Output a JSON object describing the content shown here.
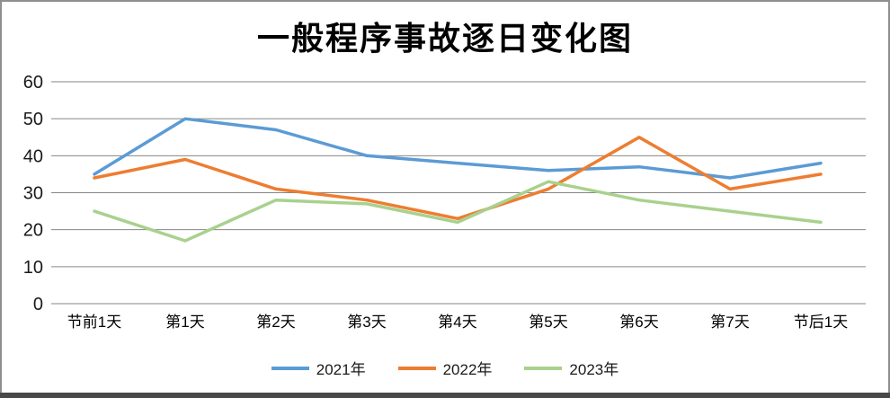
{
  "chart_data": {
    "type": "line",
    "title": "一般程序事故逐日变化图",
    "categories": [
      "节前1天",
      "第1天",
      "第2天",
      "第3天",
      "第4天",
      "第5天",
      "第6天",
      "第7天",
      "节后1天"
    ],
    "series": [
      {
        "name": "2021年",
        "color": "#5B9BD5",
        "values": [
          35,
          50,
          47,
          40,
          38,
          36,
          37,
          34,
          38
        ]
      },
      {
        "name": "2022年",
        "color": "#ED7D31",
        "values": [
          34,
          39,
          31,
          28,
          23,
          31,
          45,
          31,
          35
        ]
      },
      {
        "name": "2023年",
        "color": "#A9D18E",
        "values": [
          25,
          17,
          28,
          27,
          22,
          33,
          28,
          25,
          22
        ]
      }
    ],
    "y_axis": {
      "min": 0,
      "max": 60,
      "step": 10,
      "tick_labels": [
        "0",
        "10",
        "20",
        "30",
        "40",
        "50",
        "60"
      ]
    },
    "xlabel": "",
    "ylabel": "",
    "grid": "horizontal",
    "legend_position": "bottom"
  },
  "style": {
    "gridline_color": "#868686",
    "axis_label_color": "#1a1a1a",
    "frame_border_color": "#8f8f8f",
    "bottom_bar_color": "#484848",
    "background_color": "#ffffff"
  }
}
